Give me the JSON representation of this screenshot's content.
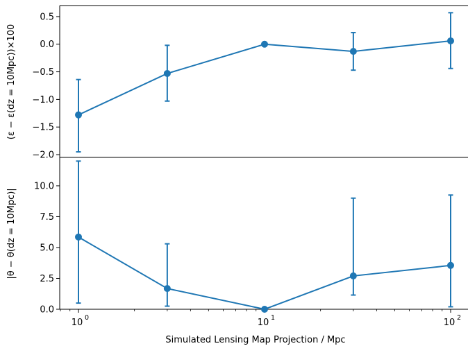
{
  "chart_data": [
    {
      "type": "line",
      "panel": "top",
      "x": [
        1,
        3,
        10,
        30,
        100
      ],
      "y": [
        -1.28,
        -0.53,
        0.0,
        -0.13,
        0.06
      ],
      "yerr_lower": [
        -1.95,
        -1.03,
        0.0,
        -0.47,
        -0.44
      ],
      "yerr_upper": [
        -0.64,
        -0.02,
        0.0,
        0.21,
        0.57
      ],
      "ylabel": "(ε − ε(dz = 10Mpc))×100",
      "ylim": [
        -2.05,
        0.7
      ],
      "yticks": [
        "0.5",
        "0.0",
        "−0.5",
        "−1.0",
        "−1.5",
        "−2.0"
      ],
      "ytick_values": [
        0.5,
        0.0,
        -0.5,
        -1.0,
        -1.5,
        -2.0
      ],
      "xscale": "log",
      "grid": false,
      "color": "#1f77b4"
    },
    {
      "type": "line",
      "panel": "bottom",
      "x": [
        1,
        3,
        10,
        30,
        100
      ],
      "y": [
        5.85,
        1.68,
        0.0,
        2.7,
        3.55
      ],
      "yerr_lower": [
        0.5,
        0.25,
        0.0,
        1.15,
        0.2
      ],
      "yerr_upper": [
        12.0,
        5.3,
        0.0,
        9.0,
        9.25
      ],
      "ylabel": "|θ − θ(dz = 10Mpc)|",
      "xlabel": "Simulated Lensing Map Projection / Mpc",
      "ylim": [
        0,
        12.3
      ],
      "yticks": [
        "0.0",
        "2.5",
        "5.0",
        "7.5",
        "10.0"
      ],
      "ytick_values": [
        0,
        2.5,
        5,
        7.5,
        10
      ],
      "xscale": "log",
      "xticks": [
        "10",
        "10",
        "10"
      ],
      "xtick_exponents": [
        "0",
        "1",
        "2"
      ],
      "xtick_values": [
        1,
        10,
        100
      ],
      "grid": false,
      "color": "#1f77b4"
    }
  ]
}
